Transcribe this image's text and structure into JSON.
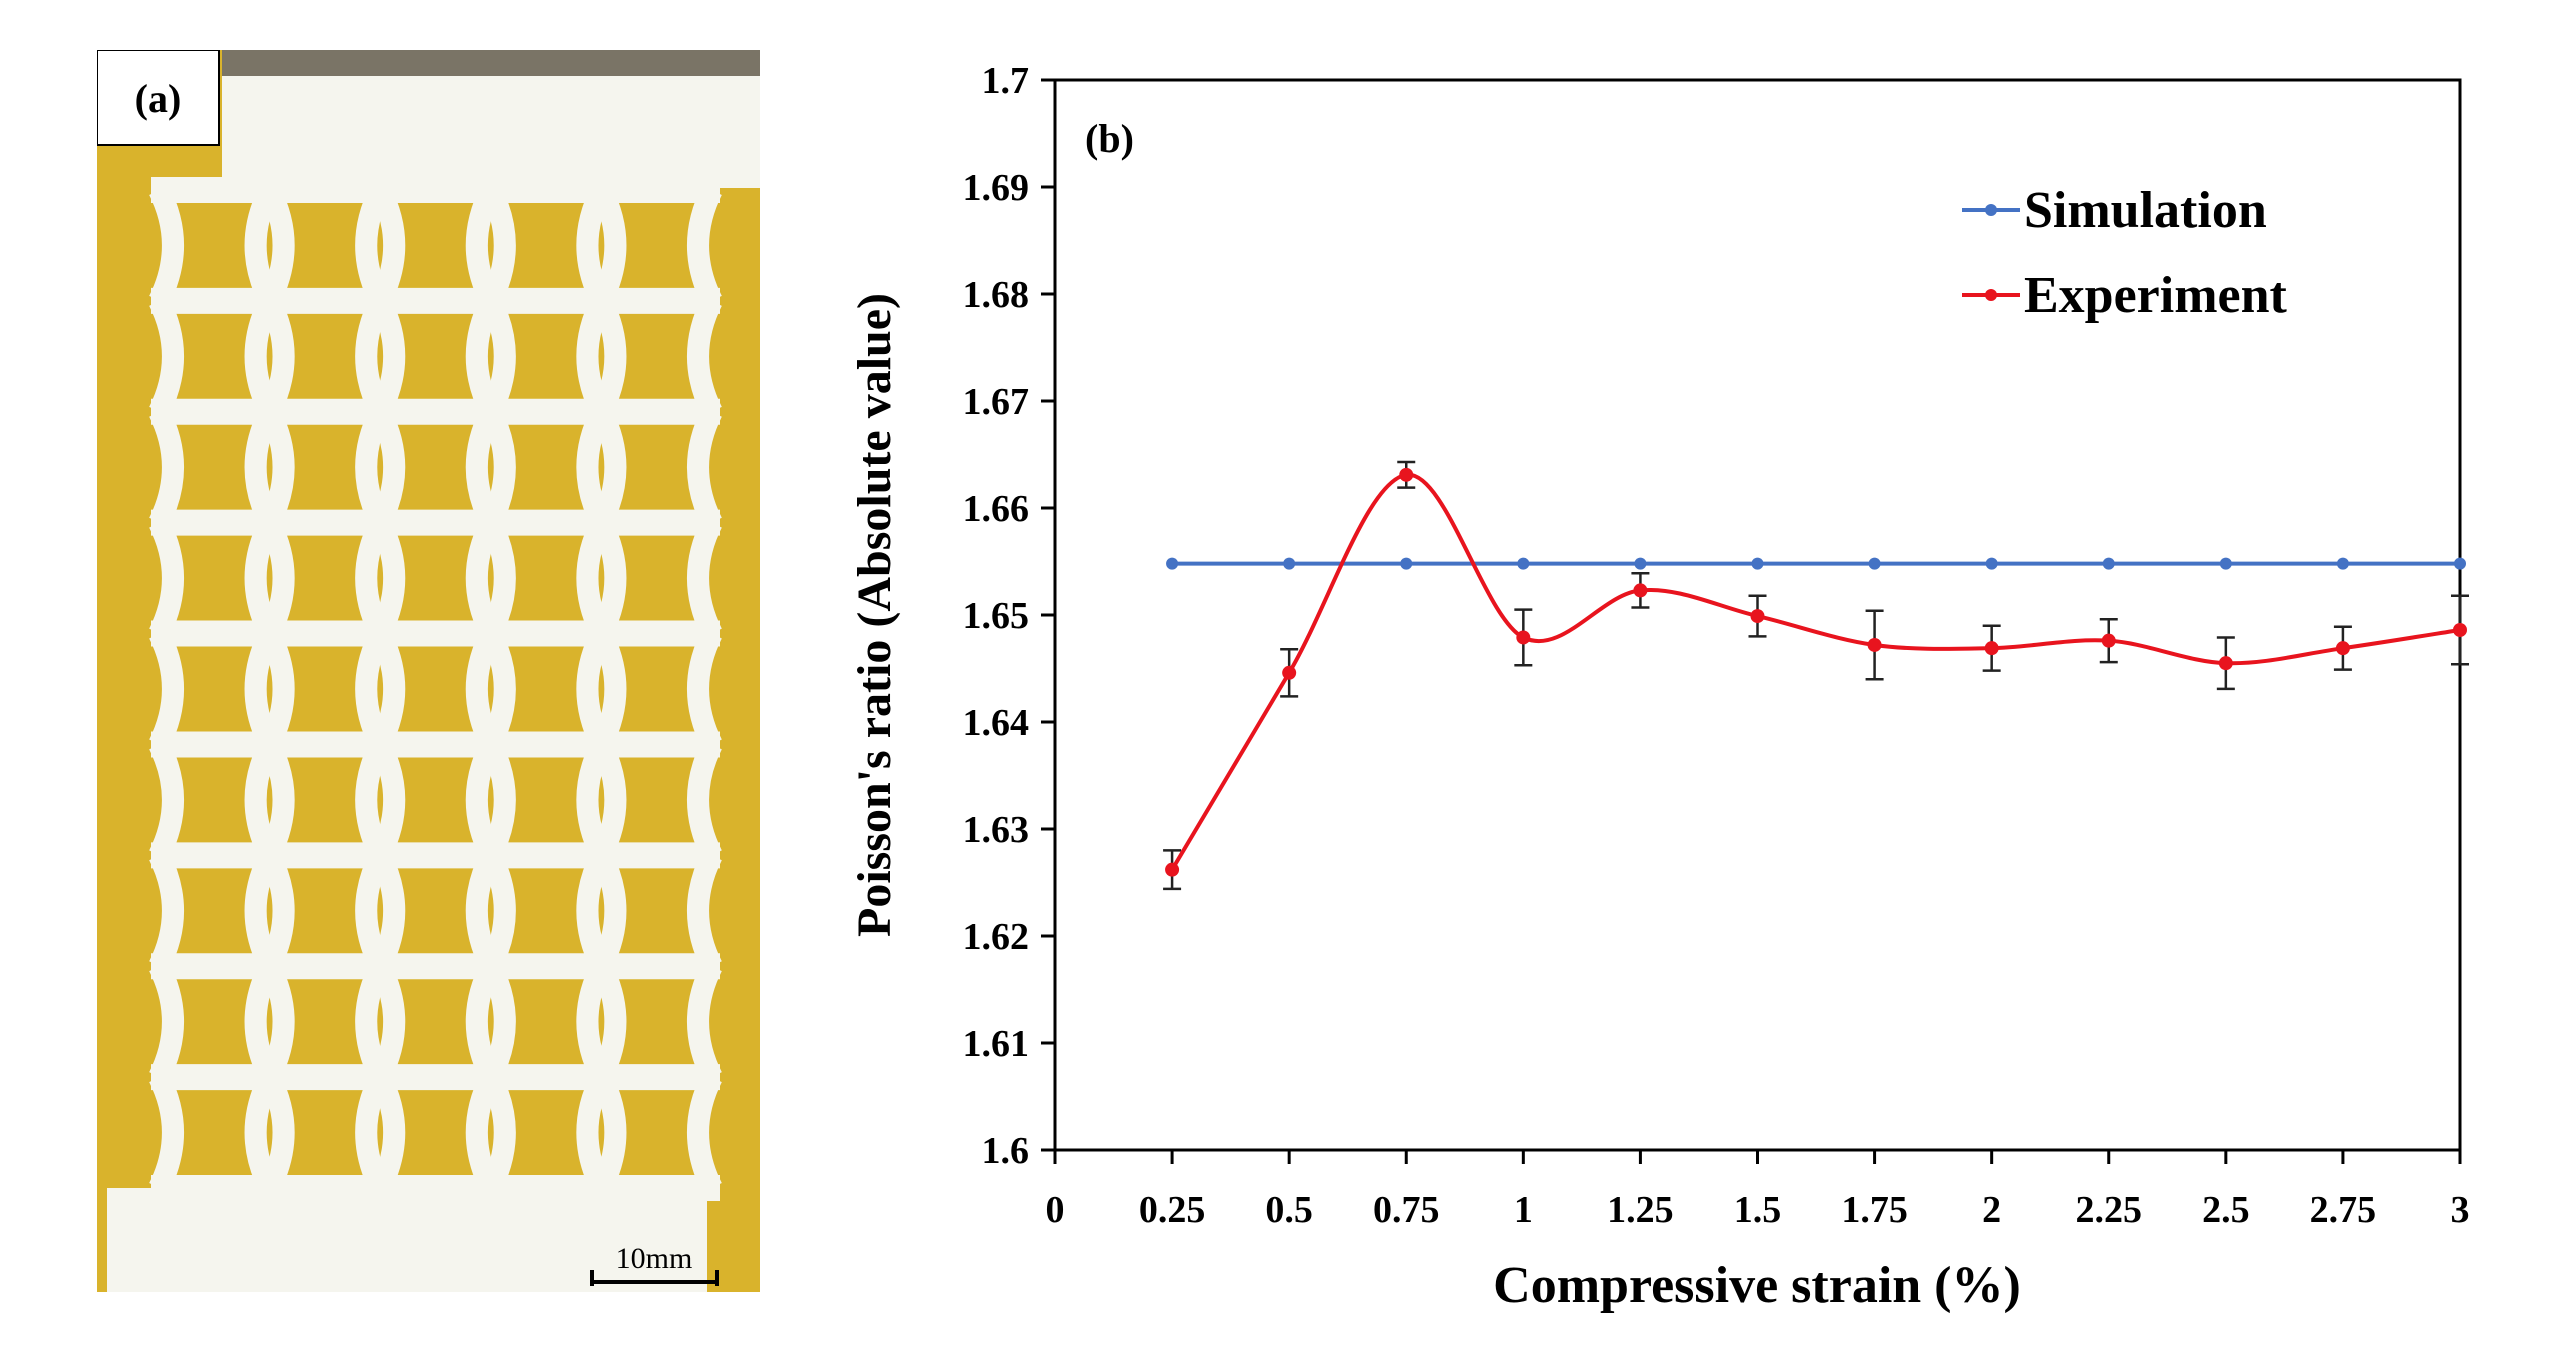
{
  "figure": {
    "panel_a": {
      "label": "(a)",
      "scale_bar_text": "10mm",
      "colors": {
        "background": "#d9b32c",
        "lattice": "#f5f5ee",
        "bar_gray": "#7a7466"
      }
    },
    "panel_b": {
      "label": "(b)"
    }
  },
  "chart_data": {
    "type": "line",
    "title": "",
    "xlabel": "Compressive strain (%)",
    "ylabel": "Poisson's ratio (Absolute value)",
    "xlim": [
      0,
      3
    ],
    "ylim": [
      1.6,
      1.7
    ],
    "x_tick_labels": [
      "0",
      "0.25",
      "0.5",
      "0.75",
      "1",
      "1.25",
      "1.5",
      "1.75",
      "2",
      "2.25",
      "2.5",
      "2.75",
      "3"
    ],
    "y_tick_labels": [
      "1.6",
      "1.61",
      "1.62",
      "1.63",
      "1.64",
      "1.65",
      "1.66",
      "1.67",
      "1.68",
      "1.69",
      "1.7"
    ],
    "legend_position": "top-right",
    "series": [
      {
        "name": "Simulation",
        "color": "#4472c4",
        "x": [
          0.25,
          0.5,
          0.75,
          1,
          1.25,
          1.5,
          1.75,
          2,
          2.25,
          2.5,
          2.75,
          3
        ],
        "values": [
          1.6548,
          1.6548,
          1.6548,
          1.6548,
          1.6548,
          1.6548,
          1.6548,
          1.6548,
          1.6548,
          1.6548,
          1.6548,
          1.6548
        ]
      },
      {
        "name": "Experiment",
        "color": "#e8141e",
        "x": [
          0.25,
          0.5,
          0.75,
          1,
          1.25,
          1.5,
          1.75,
          2,
          2.25,
          2.5,
          2.75,
          3
        ],
        "values": [
          1.6262,
          1.6446,
          1.6631,
          1.6479,
          1.6523,
          1.6499,
          1.6472,
          1.6469,
          1.6476,
          1.6455,
          1.6469,
          1.6486
        ],
        "error": [
          0.0018,
          0.0022,
          0.0012,
          0.0026,
          0.0016,
          0.0019,
          0.0032,
          0.0021,
          0.002,
          0.0024,
          0.002,
          0.0032
        ]
      }
    ]
  }
}
